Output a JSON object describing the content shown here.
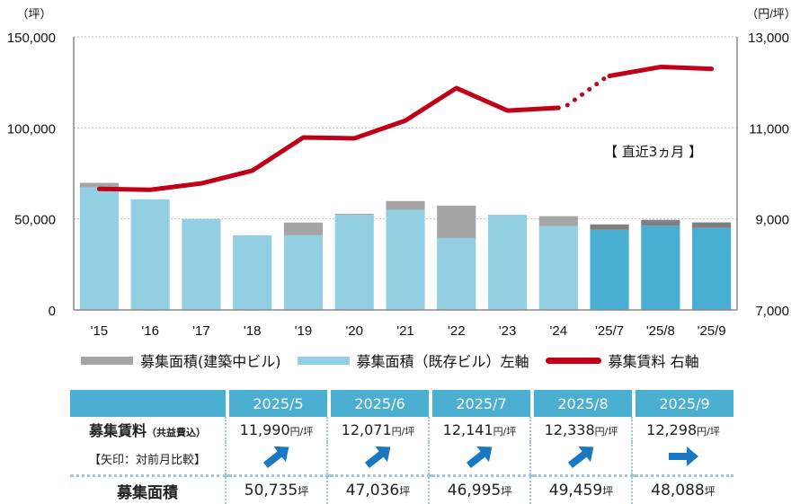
{
  "chart_data": {
    "type": "bar+line",
    "title": "",
    "categories": [
      "'15",
      "'16",
      "'17",
      "'18",
      "'19",
      "'20",
      "'21",
      "'22",
      "'23",
      "'24",
      "'25/7",
      "'25/8",
      "'25/9"
    ],
    "recent_categories": [
      "'25/7",
      "'25/8",
      "'25/9"
    ],
    "left_axis": {
      "unit_label": "（坪）",
      "ylim": [
        0,
        150000
      ],
      "ticks": [
        "0",
        "50,000",
        "100,000",
        "150,000"
      ],
      "tick_values": [
        0,
        50000,
        100000,
        150000
      ]
    },
    "right_axis": {
      "unit_label": "（円/坪）",
      "ylim": [
        7000,
        13000
      ],
      "ticks": [
        "7,000",
        "9,000",
        "11,000",
        "13,000"
      ],
      "tick_values": [
        7000,
        9000,
        11000,
        13000
      ]
    },
    "grid": true,
    "series": [
      {
        "name": "募集面積（既存ビル）左軸",
        "type": "bar",
        "axis": "left",
        "color": "#92cfe2",
        "recent_color": "#48afd3",
        "values": [
          67300,
          60800,
          50000,
          41000,
          41000,
          52300,
          55000,
          39500,
          52300,
          46000,
          44000,
          46300,
          45000
        ]
      },
      {
        "name": "募集面積（建築中ビル）",
        "type": "bar",
        "axis": "left",
        "stacked": true,
        "color": "#a5a5a5",
        "recent_color": "#7f7f7f",
        "values": [
          2500,
          0,
          0,
          0,
          7000,
          500,
          4800,
          17800,
          0,
          5500,
          2995,
          3159,
          3088
        ]
      },
      {
        "name": "募集賃料 右軸",
        "type": "line",
        "axis": "right",
        "color": "#c00018",
        "values": [
          9660,
          9640,
          9780,
          10060,
          10790,
          10770,
          11160,
          11875,
          11380,
          11440,
          12141,
          12338,
          12298
        ],
        "dotted_segment_between": [
          "'24",
          "'25/7"
        ]
      }
    ],
    "legend": {
      "position": "bottom",
      "items": [
        {
          "label": "募集面積(建築中ビル)",
          "color": "#a5a5a5"
        },
        {
          "label": "募集面積（既存ビル）左軸",
          "color": "#92cfe2"
        },
        {
          "label": "募集賃料 右軸",
          "color": "#c00018"
        }
      ]
    },
    "annotation": "【 直近3ヵ月 】"
  },
  "summary_table": {
    "header_color": "#4bafd2",
    "columns": [
      "2025/5",
      "2025/6",
      "2025/7",
      "2025/8",
      "2025/9"
    ],
    "rent_row": {
      "label": "募集賃料",
      "label_note": "（共益費込）",
      "unit": "円/坪",
      "values": [
        "11,990",
        "12,071",
        "12,141",
        "12,338",
        "12,298"
      ]
    },
    "arrow_row": {
      "label": "【矢印：対前月比較】",
      "color": "#1a78c2",
      "directions": [
        "up",
        "up",
        "up",
        "up",
        "flat"
      ]
    },
    "area_row": {
      "label": "募集面積",
      "unit": "坪",
      "values": [
        "50,735",
        "47,036",
        "46,995",
        "49,459",
        "48,088"
      ]
    }
  }
}
